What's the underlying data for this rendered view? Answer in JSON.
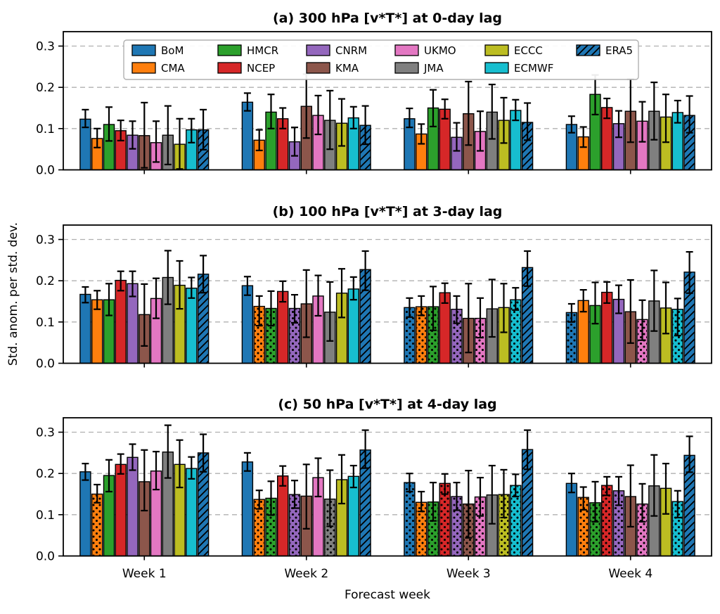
{
  "chart_data": {
    "type": "bar",
    "layout": {
      "x_categories": [
        "Week 1",
        "Week 2",
        "Week 3",
        "Week 4"
      ],
      "xlabel": "Forecast week",
      "ylabel": "Std. anom. per std. dev.",
      "yticks": [
        0.0,
        0.1,
        0.2,
        0.3
      ],
      "ylim": [
        0,
        0.335
      ],
      "grid": "horizontal dashed gridlines at each ytick",
      "legend_position": "top of panel (a), 2 rows x 6 columns",
      "error_bars": "black vertical lines with caps on every bar",
      "bar_patterns": "dotted bars = dot hatch; ERA5 = diagonal hatch"
    },
    "models": [
      {
        "name": "BoM",
        "color": "#1f77b4",
        "hatch": false
      },
      {
        "name": "CMA",
        "color": "#ff7f0e",
        "hatch": false
      },
      {
        "name": "HMCR",
        "color": "#2ca02c",
        "hatch": false
      },
      {
        "name": "NCEP",
        "color": "#d62728",
        "hatch": false
      },
      {
        "name": "CNRM",
        "color": "#9467bd",
        "hatch": false
      },
      {
        "name": "KMA",
        "color": "#8c564b",
        "hatch": false
      },
      {
        "name": "UKMO",
        "color": "#e377c2",
        "hatch": false
      },
      {
        "name": "JMA",
        "color": "#7f7f7f",
        "hatch": false
      },
      {
        "name": "ECCC",
        "color": "#bcbd22",
        "hatch": false
      },
      {
        "name": "ECMWF",
        "color": "#17becf",
        "hatch": false
      },
      {
        "name": "ERA5",
        "color": "#1f77b4",
        "hatch": true
      }
    ],
    "panels": [
      {
        "label": "a",
        "title": "(a) 300 hPa [v*T*] at 0-day lag",
        "weeks": [
          {
            "week": "Week 1",
            "values": [
              0.123,
              0.076,
              0.11,
              0.095,
              0.084,
              0.083,
              0.066,
              0.084,
              0.062,
              0.097,
              0.097
            ],
            "err_lo": [
              0.103,
              0.054,
              0.07,
              0.071,
              0.051,
              0.005,
              0.019,
              0.013,
              0.002,
              0.066,
              0.049
            ],
            "err_hi": [
              0.146,
              0.1,
              0.152,
              0.12,
              0.118,
              0.163,
              0.118,
              0.155,
              0.124,
              0.124,
              0.146
            ],
            "dotted_models": []
          },
          {
            "week": "Week 2",
            "values": [
              0.164,
              0.072,
              0.14,
              0.124,
              0.068,
              0.154,
              0.132,
              0.12,
              0.113,
              0.126,
              0.108
            ],
            "err_lo": [
              0.143,
              0.047,
              0.1,
              0.1,
              0.034,
              0.077,
              0.086,
              0.05,
              0.058,
              0.1,
              0.062
            ],
            "err_hi": [
              0.186,
              0.097,
              0.183,
              0.15,
              0.103,
              0.232,
              0.18,
              0.192,
              0.172,
              0.153,
              0.155
            ],
            "dotted_models": []
          },
          {
            "week": "Week 3",
            "values": [
              0.124,
              0.087,
              0.15,
              0.147,
              0.079,
              0.136,
              0.093,
              0.14,
              0.12,
              0.144,
              0.115
            ],
            "err_lo": [
              0.103,
              0.063,
              0.105,
              0.124,
              0.046,
              0.06,
              0.046,
              0.075,
              0.065,
              0.12,
              0.072
            ],
            "err_hi": [
              0.149,
              0.111,
              0.194,
              0.171,
              0.114,
              0.214,
              0.142,
              0.207,
              0.175,
              0.17,
              0.162
            ],
            "dotted_models": []
          },
          {
            "week": "Week 4",
            "values": [
              0.11,
              0.08,
              0.183,
              0.151,
              0.112,
              0.142,
              0.118,
              0.142,
              0.128,
              0.139,
              0.132
            ],
            "err_lo": [
              0.09,
              0.055,
              0.134,
              0.125,
              0.079,
              0.067,
              0.068,
              0.073,
              0.067,
              0.114,
              0.09
            ],
            "err_hi": [
              0.13,
              0.104,
              0.23,
              0.173,
              0.143,
              0.22,
              0.165,
              0.212,
              0.183,
              0.168,
              0.179
            ],
            "dotted_models": []
          }
        ]
      },
      {
        "label": "b",
        "title": "(b) 100 hPa [v*T*] at 3-day lag",
        "weeks": [
          {
            "week": "Week 1",
            "values": [
              0.167,
              0.154,
              0.154,
              0.201,
              0.193,
              0.118,
              0.157,
              0.208,
              0.189,
              0.182,
              0.216
            ],
            "err_lo": [
              0.147,
              0.131,
              0.116,
              0.176,
              0.162,
              0.042,
              0.109,
              0.143,
              0.132,
              0.158,
              0.171
            ],
            "err_hi": [
              0.185,
              0.176,
              0.193,
              0.223,
              0.223,
              0.192,
              0.206,
              0.273,
              0.248,
              0.208,
              0.261
            ],
            "dotted_models": []
          },
          {
            "week": "Week 2",
            "values": [
              0.188,
              0.138,
              0.133,
              0.174,
              0.133,
              0.144,
              0.163,
              0.124,
              0.17,
              0.18,
              0.227
            ],
            "err_lo": [
              0.165,
              0.091,
              0.091,
              0.149,
              0.098,
              0.063,
              0.115,
              0.054,
              0.111,
              0.154,
              0.177
            ],
            "err_hi": [
              0.21,
              0.163,
              0.175,
              0.199,
              0.166,
              0.226,
              0.213,
              0.197,
              0.229,
              0.209,
              0.272
            ],
            "dotted_models": [
              "CMA",
              "HMCR",
              "CNRM"
            ]
          },
          {
            "week": "Week 3",
            "values": [
              0.135,
              0.137,
              0.137,
              0.171,
              0.131,
              0.109,
              0.109,
              0.132,
              0.135,
              0.154,
              0.232
            ],
            "err_lo": [
              0.112,
              0.116,
              0.08,
              0.146,
              0.097,
              0.026,
              0.062,
              0.064,
              0.075,
              0.129,
              0.187
            ],
            "err_hi": [
              0.158,
              0.163,
              0.186,
              0.194,
              0.163,
              0.193,
              0.158,
              0.203,
              0.193,
              0.183,
              0.272
            ],
            "dotted_models": [
              "BoM",
              "CMA",
              "HMCR",
              "CNRM",
              "UKMO",
              "ECMWF"
            ]
          },
          {
            "week": "Week 4",
            "values": [
              0.123,
              0.152,
              0.14,
              0.172,
              0.155,
              0.125,
              0.106,
              0.151,
              0.134,
              0.131,
              0.221
            ],
            "err_lo": [
              0.1,
              0.125,
              0.096,
              0.146,
              0.121,
              0.049,
              0.056,
              0.078,
              0.072,
              0.067,
              0.17
            ],
            "err_hi": [
              0.144,
              0.178,
              0.196,
              0.197,
              0.189,
              0.202,
              0.153,
              0.225,
              0.196,
              0.157,
              0.27
            ],
            "dotted_models": [
              "BoM",
              "UKMO",
              "ECMWF"
            ]
          }
        ]
      },
      {
        "label": "c",
        "title": "(c) 50 hPa [v*T*] at 4-day lag",
        "weeks": [
          {
            "week": "Week 1",
            "values": [
              0.204,
              0.15,
              0.195,
              0.222,
              0.239,
              0.18,
              0.206,
              0.252,
              0.222,
              0.212,
              0.25
            ],
            "err_lo": [
              0.184,
              0.129,
              0.156,
              0.199,
              0.208,
              0.11,
              0.161,
              0.189,
              0.166,
              0.187,
              0.204
            ],
            "err_hi": [
              0.224,
              0.173,
              0.233,
              0.247,
              0.271,
              0.257,
              0.253,
              0.317,
              0.281,
              0.24,
              0.295
            ],
            "dotted_models": [
              "CMA"
            ]
          },
          {
            "week": "Week 2",
            "values": [
              0.228,
              0.137,
              0.14,
              0.194,
              0.149,
              0.145,
              0.19,
              0.138,
              0.185,
              0.193,
              0.257
            ],
            "err_lo": [
              0.206,
              0.114,
              0.099,
              0.17,
              0.116,
              0.066,
              0.144,
              0.072,
              0.127,
              0.166,
              0.213
            ],
            "err_hi": [
              0.25,
              0.159,
              0.181,
              0.218,
              0.183,
              0.222,
              0.237,
              0.208,
              0.245,
              0.219,
              0.305
            ],
            "dotted_models": [
              "CMA",
              "HMCR",
              "CNRM",
              "JMA"
            ]
          },
          {
            "week": "Week 3",
            "values": [
              0.178,
              0.13,
              0.131,
              0.176,
              0.144,
              0.126,
              0.143,
              0.148,
              0.149,
              0.171,
              0.258
            ],
            "err_lo": [
              0.156,
              0.108,
              0.085,
              0.15,
              0.111,
              0.044,
              0.097,
              0.078,
              0.093,
              0.144,
              0.21
            ],
            "err_hi": [
              0.2,
              0.156,
              0.178,
              0.199,
              0.178,
              0.207,
              0.19,
              0.219,
              0.209,
              0.198,
              0.305
            ],
            "dotted_models": [
              "BoM",
              "CMA",
              "HMCR",
              "NCEP",
              "CNRM",
              "KMA",
              "UKMO",
              "ECCC",
              "ECMWF"
            ]
          },
          {
            "week": "Week 4",
            "values": [
              0.176,
              0.142,
              0.129,
              0.171,
              0.158,
              0.144,
              0.126,
              0.17,
              0.164,
              0.132,
              0.244
            ],
            "err_lo": [
              0.154,
              0.112,
              0.083,
              0.147,
              0.123,
              0.071,
              0.083,
              0.097,
              0.102,
              0.093,
              0.203
            ],
            "err_hi": [
              0.2,
              0.167,
              0.18,
              0.192,
              0.192,
              0.22,
              0.175,
              0.245,
              0.224,
              0.158,
              0.29
            ],
            "dotted_models": [
              "CMA",
              "HMCR",
              "NCEP",
              "CNRM",
              "UKMO",
              "ECMWF"
            ]
          }
        ]
      }
    ],
    "legend": {
      "entries": [
        "BoM",
        "CMA",
        "HMCR",
        "NCEP",
        "CNRM",
        "KMA",
        "UKMO",
        "JMA",
        "ECCC",
        "ECMWF",
        "ERA5"
      ]
    }
  },
  "style": {
    "grid_color": "#b0b0b0",
    "spine_color": "#000000",
    "errorbar_color": "#000000",
    "background": "#ffffff"
  }
}
